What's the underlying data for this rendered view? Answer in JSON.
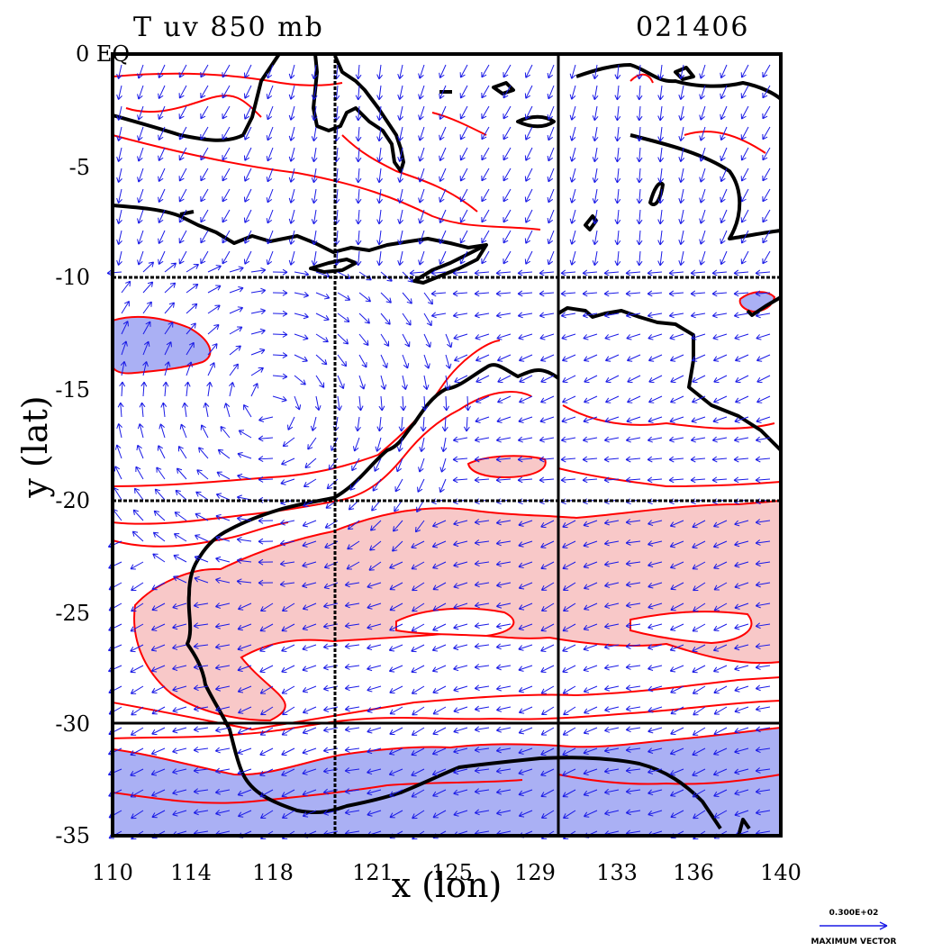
{
  "title": {
    "left": "T uv 850 mb",
    "right": "021406"
  },
  "axes": {
    "xlabel": "x (lon)",
    "ylabel": "y (lat)",
    "x_ticks": [
      "110",
      "114",
      "118",
      "121",
      "125",
      "129",
      "133",
      "136",
      "140"
    ],
    "y_ticks": [
      "0 EQ",
      "-5",
      "-10",
      "-15",
      "-20",
      "-25",
      "-30",
      "-35"
    ]
  },
  "legend": {
    "magnitude": "0.300E+02",
    "caption": "MAXIMUM VECTOR"
  },
  "colors": {
    "coast": "#000000",
    "contour": "#ff0000",
    "warm_fill": "#f8c8c8",
    "cool_fill": "#aab0f4",
    "vector": "#1a1ae6"
  },
  "chart_data": {
    "type": "map",
    "variables": [
      "temperature",
      "wind vectors (u, v)"
    ],
    "level": "850 mb",
    "x_range": [
      110,
      140
    ],
    "y_range": [
      -35,
      0
    ],
    "grid": true,
    "gridlines_lon": [
      120,
      130
    ],
    "gridlines_lat": [
      -10,
      -20,
      -30
    ]
  }
}
